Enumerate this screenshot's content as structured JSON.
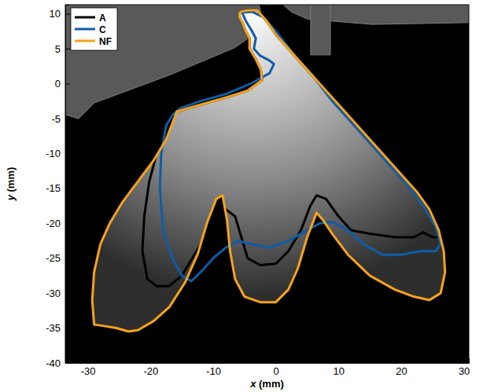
{
  "chart_data": {
    "type": "line",
    "x_label": "x (mm)",
    "y_label": "y (mm)",
    "xlim": [
      -33.6,
      30.8
    ],
    "ylim": [
      -40,
      11.3
    ],
    "xticks": [
      -30,
      -20,
      -10,
      0,
      10,
      20,
      30
    ],
    "yticks": [
      -40,
      -35,
      -30,
      -25,
      -20,
      -15,
      -10,
      -5,
      0,
      5,
      10
    ],
    "legend": "upper left",
    "series": [
      {
        "name": "A",
        "color": "#000000",
        "x": [
          -5.6,
          -4.5,
          -3,
          -1.5,
          0,
          2.5,
          5,
          7.5,
          10,
          12.5,
          15,
          17.5,
          20,
          22.5,
          24.5,
          26,
          26.5,
          25,
          23.5,
          22,
          19,
          15,
          12,
          10,
          8,
          6.5,
          5.5,
          4,
          2,
          0,
          -2.5,
          -4.5,
          -5.5,
          -6.5,
          -8,
          -9.5,
          -11,
          -13,
          -15,
          -17,
          -19,
          -20.5,
          -21.3,
          -21,
          -20.2,
          -19,
          -17.5,
          -15.8,
          -12,
          -8,
          -4.5,
          -2.2,
          -2.4,
          -3.2,
          -4.2,
          -4.2,
          -4.8,
          -5.2,
          -5.8,
          -5.8
        ],
        "values": [
          10.3,
          10.5,
          10.5,
          9,
          7,
          4.5,
          2,
          -0.5,
          -3,
          -5.5,
          -8,
          -10.5,
          -13,
          -15.5,
          -18,
          -21,
          -22,
          -22,
          -21.3,
          -22,
          -22,
          -21.5,
          -21,
          -19,
          -16.5,
          -16,
          -17.5,
          -21,
          -24,
          -25.8,
          -26,
          -25,
          -22,
          -19,
          -18,
          -19,
          -21.5,
          -24.5,
          -27.5,
          -29,
          -29,
          -28,
          -24,
          -19,
          -14,
          -10,
          -6.5,
          -4,
          -3,
          -2,
          -1,
          0.5,
          2,
          3.5,
          5,
          6.5,
          7.5,
          8.5,
          9.5,
          10
        ]
      },
      {
        "name": "C",
        "color": "#0F5CA8",
        "x": [
          -5.4,
          -3.8,
          -2,
          0,
          3,
          6,
          9,
          12,
          15,
          18,
          21,
          23.5,
          25.5,
          26.3,
          25.5,
          23,
          20,
          17,
          14,
          11.5,
          9,
          7,
          5,
          2,
          -1,
          -4,
          -6,
          -8,
          -10,
          -12,
          -13.5,
          -15,
          -16.5,
          -18,
          -18.5,
          -18.3,
          -17.5,
          -16.5,
          -15.2,
          -12,
          -8,
          -4,
          -1,
          -0.3,
          -1,
          -2.5,
          -3.5,
          -3.2,
          -3.8,
          -4.8
        ],
        "values": [
          10.2,
          10.3,
          9.5,
          7.5,
          4,
          1,
          -2.5,
          -5.5,
          -8.5,
          -11.5,
          -14.5,
          -17.5,
          -20.5,
          -23,
          -24,
          -24,
          -24.5,
          -24.5,
          -23,
          -21,
          -19.8,
          -20,
          -21,
          -22.5,
          -23.5,
          -23,
          -22.5,
          -23.5,
          -25,
          -27,
          -28.3,
          -27.5,
          -25,
          -21,
          -15,
          -10,
          -6,
          -4.5,
          -3.5,
          -2.5,
          -1.5,
          0,
          1.5,
          2.8,
          3.3,
          4,
          5,
          6.5,
          7.5,
          9
        ]
      },
      {
        "name": "NF",
        "color": "#F5A31C",
        "x": [
          -5.6,
          -4.5,
          -3,
          -1.5,
          0,
          2.5,
          5,
          7.5,
          10,
          12.5,
          15,
          17.5,
          20,
          22.5,
          24.5,
          26,
          26.8,
          27,
          26.3,
          24.5,
          22,
          19,
          15,
          11.5,
          9,
          7.5,
          6.5,
          5,
          3.5,
          2,
          0,
          -2.5,
          -5,
          -6.5,
          -7.3,
          -7.8,
          -8.5,
          -9.5,
          -11,
          -12.5,
          -14.5,
          -17,
          -19.5,
          -22,
          -23.5,
          -25.5,
          -27.5,
          -29,
          -29.3,
          -29,
          -28,
          -26.5,
          -24.5,
          -22,
          -19.5,
          -17.5,
          -15.8,
          -12,
          -8,
          -4.5,
          -2.2,
          -2.4,
          -3.2,
          -4.2,
          -4.2,
          -4.8,
          -5.2,
          -5.8,
          -5.8
        ],
        "values": [
          10.3,
          10.5,
          10.5,
          9,
          7,
          4.5,
          2,
          -0.5,
          -3,
          -5.5,
          -8,
          -10.5,
          -13,
          -15.5,
          -18,
          -21,
          -24,
          -27,
          -30,
          -31,
          -30.5,
          -29.5,
          -27.5,
          -24.5,
          -21.5,
          -19.5,
          -18.5,
          -22,
          -26.5,
          -29.5,
          -31.3,
          -31.3,
          -30.5,
          -28,
          -24,
          -19.5,
          -16,
          -16.5,
          -20,
          -24.5,
          -28.5,
          -32,
          -34,
          -35.3,
          -35.5,
          -35,
          -34.7,
          -34.5,
          -31,
          -27,
          -23,
          -20,
          -17,
          -14,
          -11,
          -8,
          -4,
          -3,
          -2,
          -1,
          0.5,
          2,
          3.5,
          5,
          6.5,
          7.5,
          8.5,
          9.5,
          10
        ]
      }
    ]
  }
}
